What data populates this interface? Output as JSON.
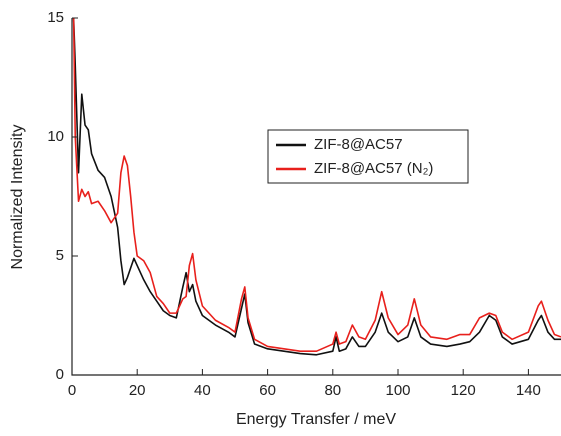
{
  "chart_data": {
    "type": "line",
    "x_label": "Energy Transfer / meV",
    "y_label": "Normalized Intensity",
    "x": [
      0.5,
      1,
      2,
      3,
      4,
      5,
      6,
      8,
      10,
      12,
      14,
      15,
      16,
      17,
      18,
      19,
      20,
      22,
      24,
      26,
      28,
      30,
      32,
      34,
      35,
      36,
      37,
      38,
      40,
      44,
      48,
      50,
      52,
      53,
      54,
      56,
      60,
      65,
      70,
      75,
      80,
      81,
      82,
      84,
      86,
      88,
      90,
      93,
      95,
      97,
      100,
      103,
      105,
      107,
      110,
      115,
      119,
      122,
      125,
      128,
      130,
      132,
      135,
      140,
      143,
      144,
      146,
      148,
      150
    ],
    "series": [
      {
        "name": "ZIF-8@AC57",
        "color": "#111111",
        "values": [
          15,
          13,
          8.5,
          11.8,
          10.5,
          10.3,
          9.3,
          8.6,
          8.3,
          7.5,
          6.2,
          4.8,
          3.8,
          4.1,
          4.5,
          4.9,
          4.6,
          4.0,
          3.5,
          3.1,
          2.7,
          2.5,
          2.4,
          3.7,
          4.3,
          3.5,
          3.8,
          3.1,
          2.5,
          2.1,
          1.8,
          1.6,
          2.8,
          3.4,
          2.2,
          1.3,
          1.1,
          1.0,
          0.9,
          0.85,
          1.0,
          1.6,
          1.0,
          1.1,
          1.6,
          1.2,
          1.2,
          1.8,
          2.6,
          1.8,
          1.4,
          1.6,
          2.4,
          1.6,
          1.3,
          1.2,
          1.3,
          1.4,
          1.8,
          2.5,
          2.3,
          1.6,
          1.3,
          1.5,
          2.3,
          2.5,
          1.8,
          1.5,
          1.5
        ]
      },
      {
        "name": "ZIF-8@AC57 (N₂)",
        "color": "#e8201c",
        "values": [
          15,
          10,
          7.3,
          7.8,
          7.5,
          7.7,
          7.2,
          7.3,
          6.9,
          6.4,
          6.8,
          8.5,
          9.2,
          8.8,
          7.5,
          6.0,
          5.0,
          4.8,
          4.3,
          3.3,
          3.0,
          2.6,
          2.6,
          3.2,
          3.3,
          4.6,
          5.1,
          4.0,
          2.9,
          2.3,
          2.0,
          1.8,
          3.2,
          3.7,
          2.4,
          1.5,
          1.2,
          1.1,
          1.0,
          1.0,
          1.3,
          1.8,
          1.3,
          1.4,
          2.1,
          1.6,
          1.5,
          2.3,
          3.5,
          2.4,
          1.7,
          2.1,
          3.2,
          2.1,
          1.6,
          1.5,
          1.7,
          1.7,
          2.4,
          2.6,
          2.5,
          1.8,
          1.5,
          1.8,
          2.9,
          3.1,
          2.3,
          1.7,
          1.6
        ]
      }
    ],
    "xlim": [
      0,
      150
    ],
    "xticks": [
      0,
      20,
      40,
      60,
      80,
      100,
      120,
      140
    ],
    "ylim": [
      0,
      15
    ],
    "yticks": [
      0,
      5,
      10,
      15
    ]
  }
}
